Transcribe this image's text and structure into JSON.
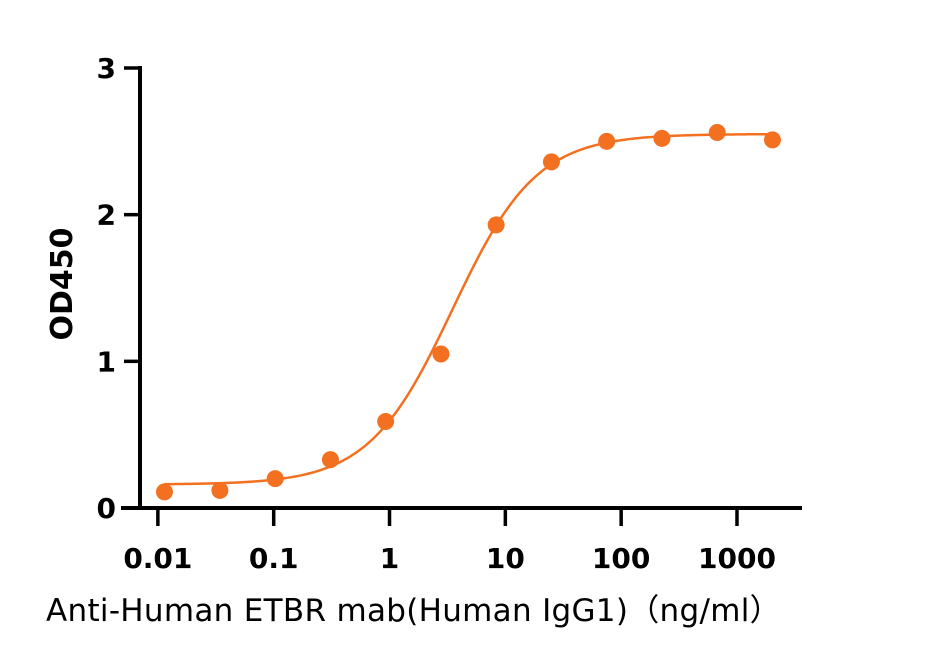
{
  "chart_data": {
    "type": "scatter",
    "title": "",
    "xlabel": "Anti-Human ETBR mab(Human IgG1)（ng/ml）",
    "ylabel": "OD450",
    "x_scale": "log",
    "xlim": [
      0.005,
      3500
    ],
    "ylim": [
      0,
      3
    ],
    "x_ticks": [
      0.01,
      0.1,
      1,
      10,
      100,
      1000
    ],
    "x_tick_labels": [
      "0.01",
      "0.1",
      "1",
      "10",
      "100",
      "1000"
    ],
    "y_ticks": [
      0,
      1,
      2,
      3
    ],
    "y_tick_labels": [
      "0",
      "1",
      "2",
      "3"
    ],
    "grid": false,
    "legend": "none",
    "color": "#F37021",
    "series": [
      {
        "x": [
          0.0114,
          0.0343,
          0.103,
          0.309,
          0.926,
          2.78,
          8.33,
          25,
          75,
          225,
          675,
          2025
        ],
        "y": [
          0.11,
          0.12,
          0.2,
          0.33,
          0.59,
          1.05,
          1.93,
          2.36,
          2.5,
          2.52,
          2.56,
          2.51
        ]
      }
    ],
    "fit_curve": {
      "model": "4PL",
      "bottom": 0.16,
      "top": 2.55,
      "ec50": 3.5,
      "hill": 1.2
    }
  }
}
